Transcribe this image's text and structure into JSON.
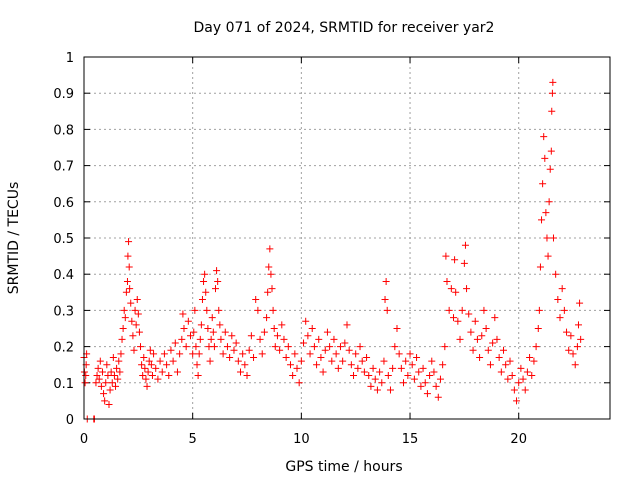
{
  "chart_data": {
    "type": "scatter",
    "title": "Day 071 of 2024, SRMTID for receiver yar2",
    "xlabel": "GPS time / hours",
    "ylabel": "SRMTID / TECUs",
    "xlim": [
      0,
      24.2
    ],
    "ylim": [
      0,
      1
    ],
    "x_ticks": [
      0,
      5,
      10,
      15,
      20
    ],
    "x_tick_labels": [
      "0",
      "5",
      "10",
      "15",
      "20"
    ],
    "y_ticks": [
      0,
      0.1,
      0.2,
      0.3,
      0.4,
      0.5,
      0.6,
      0.7,
      0.8,
      0.9,
      1
    ],
    "y_tick_labels": [
      "0",
      "0.1",
      "0.2",
      "0.3",
      "0.4",
      "0.5",
      "0.6",
      "0.7",
      "0.8",
      "0.9",
      "1"
    ],
    "grid": true,
    "marker": "+",
    "color": "#ff0000",
    "series": [
      {
        "name": "SRMTID",
        "points": [
          [
            0.0,
            0.17
          ],
          [
            0.02,
            0.13
          ],
          [
            0.05,
            0.1
          ],
          [
            0.08,
            0.12
          ],
          [
            0.1,
            0.15
          ],
          [
            0.12,
            0.18
          ],
          [
            0.15,
            0.0
          ],
          [
            0.45,
            0.0
          ],
          [
            0.48,
            0.0
          ],
          [
            0.55,
            0.1
          ],
          [
            0.6,
            0.12
          ],
          [
            0.65,
            0.14
          ],
          [
            0.7,
            0.11
          ],
          [
            0.75,
            0.16
          ],
          [
            0.8,
            0.09
          ],
          [
            0.85,
            0.13
          ],
          [
            0.9,
            0.07
          ],
          [
            0.95,
            0.05
          ],
          [
            1.0,
            0.1
          ],
          [
            1.05,
            0.15
          ],
          [
            1.1,
            0.12
          ],
          [
            1.15,
            0.04
          ],
          [
            1.2,
            0.08
          ],
          [
            1.25,
            0.13
          ],
          [
            1.3,
            0.1
          ],
          [
            1.35,
            0.17
          ],
          [
            1.4,
            0.12
          ],
          [
            1.45,
            0.09
          ],
          [
            1.5,
            0.14
          ],
          [
            1.55,
            0.11
          ],
          [
            1.6,
            0.16
          ],
          [
            1.65,
            0.13
          ],
          [
            1.7,
            0.18
          ],
          [
            1.75,
            0.22
          ],
          [
            1.8,
            0.25
          ],
          [
            1.85,
            0.3
          ],
          [
            1.9,
            0.28
          ],
          [
            1.95,
            0.35
          ],
          [
            2.0,
            0.38
          ],
          [
            2.02,
            0.45
          ],
          [
            2.05,
            0.49
          ],
          [
            2.08,
            0.42
          ],
          [
            2.1,
            0.36
          ],
          [
            2.15,
            0.32
          ],
          [
            2.2,
            0.27
          ],
          [
            2.25,
            0.23
          ],
          [
            2.3,
            0.19
          ],
          [
            2.35,
            0.3
          ],
          [
            2.4,
            0.26
          ],
          [
            2.45,
            0.33
          ],
          [
            2.5,
            0.29
          ],
          [
            2.55,
            0.24
          ],
          [
            2.6,
            0.2
          ],
          [
            2.65,
            0.15
          ],
          [
            2.7,
            0.12
          ],
          [
            2.75,
            0.17
          ],
          [
            2.8,
            0.14
          ],
          [
            2.85,
            0.11
          ],
          [
            2.9,
            0.09
          ],
          [
            2.95,
            0.13
          ],
          [
            3.0,
            0.16
          ],
          [
            3.05,
            0.19
          ],
          [
            3.1,
            0.15
          ],
          [
            3.15,
            0.12
          ],
          [
            3.2,
            0.18
          ],
          [
            3.3,
            0.14
          ],
          [
            3.4,
            0.11
          ],
          [
            3.5,
            0.16
          ],
          [
            3.6,
            0.13
          ],
          [
            3.7,
            0.18
          ],
          [
            3.8,
            0.15
          ],
          [
            3.9,
            0.12
          ],
          [
            4.0,
            0.19
          ],
          [
            4.1,
            0.16
          ],
          [
            4.2,
            0.21
          ],
          [
            4.3,
            0.13
          ],
          [
            4.4,
            0.18
          ],
          [
            4.5,
            0.22
          ],
          [
            4.55,
            0.29
          ],
          [
            4.6,
            0.25
          ],
          [
            4.7,
            0.2
          ],
          [
            4.8,
            0.27
          ],
          [
            4.9,
            0.23
          ],
          [
            5.0,
            0.18
          ],
          [
            5.05,
            0.24
          ],
          [
            5.1,
            0.3
          ],
          [
            5.15,
            0.2
          ],
          [
            5.2,
            0.15
          ],
          [
            5.25,
            0.12
          ],
          [
            5.3,
            0.18
          ],
          [
            5.35,
            0.22
          ],
          [
            5.4,
            0.26
          ],
          [
            5.45,
            0.33
          ],
          [
            5.5,
            0.38
          ],
          [
            5.55,
            0.4
          ],
          [
            5.6,
            0.35
          ],
          [
            5.65,
            0.3
          ],
          [
            5.7,
            0.25
          ],
          [
            5.75,
            0.2
          ],
          [
            5.8,
            0.16
          ],
          [
            5.85,
            0.22
          ],
          [
            5.9,
            0.28
          ],
          [
            5.95,
            0.24
          ],
          [
            6.0,
            0.2
          ],
          [
            6.05,
            0.36
          ],
          [
            6.1,
            0.41
          ],
          [
            6.15,
            0.38
          ],
          [
            6.2,
            0.3
          ],
          [
            6.25,
            0.26
          ],
          [
            6.3,
            0.22
          ],
          [
            6.4,
            0.18
          ],
          [
            6.5,
            0.24
          ],
          [
            6.6,
            0.2
          ],
          [
            6.7,
            0.17
          ],
          [
            6.8,
            0.23
          ],
          [
            6.9,
            0.19
          ],
          [
            7.0,
            0.21
          ],
          [
            7.1,
            0.16
          ],
          [
            7.2,
            0.13
          ],
          [
            7.3,
            0.18
          ],
          [
            7.4,
            0.15
          ],
          [
            7.5,
            0.12
          ],
          [
            7.6,
            0.19
          ],
          [
            7.7,
            0.23
          ],
          [
            7.8,
            0.17
          ],
          [
            7.9,
            0.33
          ],
          [
            8.0,
            0.3
          ],
          [
            8.1,
            0.22
          ],
          [
            8.2,
            0.18
          ],
          [
            8.3,
            0.24
          ],
          [
            8.4,
            0.28
          ],
          [
            8.45,
            0.35
          ],
          [
            8.5,
            0.42
          ],
          [
            8.55,
            0.47
          ],
          [
            8.6,
            0.4
          ],
          [
            8.65,
            0.36
          ],
          [
            8.7,
            0.3
          ],
          [
            8.75,
            0.25
          ],
          [
            8.8,
            0.2
          ],
          [
            8.9,
            0.23
          ],
          [
            9.0,
            0.19
          ],
          [
            9.1,
            0.26
          ],
          [
            9.2,
            0.22
          ],
          [
            9.3,
            0.17
          ],
          [
            9.4,
            0.2
          ],
          [
            9.5,
            0.15
          ],
          [
            9.6,
            0.12
          ],
          [
            9.7,
            0.18
          ],
          [
            9.8,
            0.14
          ],
          [
            9.9,
            0.1
          ],
          [
            10.0,
            0.16
          ],
          [
            10.1,
            0.21
          ],
          [
            10.2,
            0.27
          ],
          [
            10.3,
            0.23
          ],
          [
            10.4,
            0.18
          ],
          [
            10.5,
            0.25
          ],
          [
            10.6,
            0.2
          ],
          [
            10.7,
            0.15
          ],
          [
            10.8,
            0.22
          ],
          [
            10.9,
            0.17
          ],
          [
            11.0,
            0.13
          ],
          [
            11.1,
            0.19
          ],
          [
            11.2,
            0.24
          ],
          [
            11.3,
            0.2
          ],
          [
            11.4,
            0.16
          ],
          [
            11.5,
            0.22
          ],
          [
            11.6,
            0.18
          ],
          [
            11.7,
            0.14
          ],
          [
            11.8,
            0.2
          ],
          [
            11.9,
            0.16
          ],
          [
            12.0,
            0.21
          ],
          [
            12.1,
            0.26
          ],
          [
            12.2,
            0.19
          ],
          [
            12.3,
            0.15
          ],
          [
            12.4,
            0.12
          ],
          [
            12.5,
            0.18
          ],
          [
            12.6,
            0.14
          ],
          [
            12.7,
            0.2
          ],
          [
            12.8,
            0.16
          ],
          [
            12.9,
            0.13
          ],
          [
            13.0,
            0.17
          ],
          [
            13.1,
            0.12
          ],
          [
            13.2,
            0.09
          ],
          [
            13.3,
            0.14
          ],
          [
            13.4,
            0.11
          ],
          [
            13.5,
            0.08
          ],
          [
            13.6,
            0.13
          ],
          [
            13.7,
            0.1
          ],
          [
            13.8,
            0.16
          ],
          [
            13.85,
            0.33
          ],
          [
            13.9,
            0.38
          ],
          [
            13.95,
            0.3
          ],
          [
            14.0,
            0.12
          ],
          [
            14.1,
            0.08
          ],
          [
            14.2,
            0.14
          ],
          [
            14.3,
            0.2
          ],
          [
            14.4,
            0.25
          ],
          [
            14.5,
            0.18
          ],
          [
            14.6,
            0.14
          ],
          [
            14.7,
            0.1
          ],
          [
            14.8,
            0.16
          ],
          [
            14.9,
            0.12
          ],
          [
            15.0,
            0.18
          ],
          [
            15.1,
            0.15
          ],
          [
            15.2,
            0.11
          ],
          [
            15.3,
            0.17
          ],
          [
            15.4,
            0.13
          ],
          [
            15.5,
            0.09
          ],
          [
            15.6,
            0.14
          ],
          [
            15.7,
            0.1
          ],
          [
            15.8,
            0.07
          ],
          [
            15.9,
            0.12
          ],
          [
            16.0,
            0.16
          ],
          [
            16.1,
            0.13
          ],
          [
            16.2,
            0.09
          ],
          [
            16.3,
            0.06
          ],
          [
            16.4,
            0.11
          ],
          [
            16.5,
            0.15
          ],
          [
            16.6,
            0.2
          ],
          [
            16.65,
            0.45
          ],
          [
            16.7,
            0.38
          ],
          [
            16.8,
            0.3
          ],
          [
            16.9,
            0.36
          ],
          [
            17.0,
            0.28
          ],
          [
            17.05,
            0.44
          ],
          [
            17.1,
            0.35
          ],
          [
            17.2,
            0.27
          ],
          [
            17.3,
            0.22
          ],
          [
            17.4,
            0.3
          ],
          [
            17.5,
            0.43
          ],
          [
            17.55,
            0.48
          ],
          [
            17.6,
            0.36
          ],
          [
            17.7,
            0.29
          ],
          [
            17.8,
            0.24
          ],
          [
            17.9,
            0.19
          ],
          [
            18.0,
            0.27
          ],
          [
            18.1,
            0.22
          ],
          [
            18.2,
            0.17
          ],
          [
            18.3,
            0.23
          ],
          [
            18.4,
            0.3
          ],
          [
            18.5,
            0.25
          ],
          [
            18.6,
            0.19
          ],
          [
            18.7,
            0.15
          ],
          [
            18.8,
            0.21
          ],
          [
            18.9,
            0.28
          ],
          [
            19.0,
            0.22
          ],
          [
            19.1,
            0.17
          ],
          [
            19.2,
            0.13
          ],
          [
            19.3,
            0.19
          ],
          [
            19.4,
            0.15
          ],
          [
            19.5,
            0.11
          ],
          [
            19.6,
            0.16
          ],
          [
            19.7,
            0.12
          ],
          [
            19.8,
            0.08
          ],
          [
            19.9,
            0.05
          ],
          [
            20.0,
            0.1
          ],
          [
            20.1,
            0.14
          ],
          [
            20.2,
            0.11
          ],
          [
            20.3,
            0.08
          ],
          [
            20.4,
            0.13
          ],
          [
            20.5,
            0.17
          ],
          [
            20.6,
            0.12
          ],
          [
            20.7,
            0.16
          ],
          [
            20.8,
            0.2
          ],
          [
            20.9,
            0.25
          ],
          [
            20.95,
            0.3
          ],
          [
            21.0,
            0.42
          ],
          [
            21.05,
            0.55
          ],
          [
            21.1,
            0.65
          ],
          [
            21.15,
            0.78
          ],
          [
            21.2,
            0.72
          ],
          [
            21.25,
            0.57
          ],
          [
            21.3,
            0.5
          ],
          [
            21.35,
            0.45
          ],
          [
            21.4,
            0.6
          ],
          [
            21.45,
            0.69
          ],
          [
            21.5,
            0.74
          ],
          [
            21.52,
            0.85
          ],
          [
            21.55,
            0.9
          ],
          [
            21.57,
            0.93
          ],
          [
            21.6,
            0.5
          ],
          [
            21.7,
            0.4
          ],
          [
            21.8,
            0.33
          ],
          [
            21.9,
            0.28
          ],
          [
            22.0,
            0.36
          ],
          [
            22.1,
            0.3
          ],
          [
            22.2,
            0.24
          ],
          [
            22.3,
            0.19
          ],
          [
            22.4,
            0.23
          ],
          [
            22.5,
            0.18
          ],
          [
            22.6,
            0.15
          ],
          [
            22.7,
            0.2
          ],
          [
            22.75,
            0.26
          ],
          [
            22.8,
            0.32
          ],
          [
            22.85,
            0.22
          ]
        ]
      }
    ]
  }
}
